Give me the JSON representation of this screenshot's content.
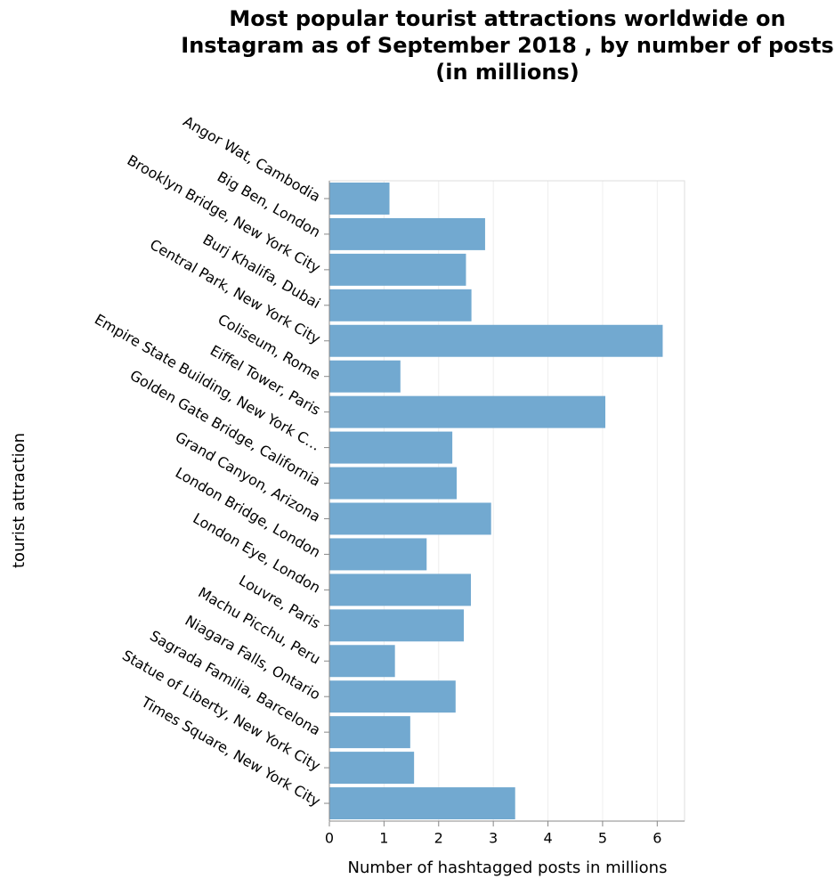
{
  "chart_data": {
    "type": "bar",
    "orientation": "horizontal",
    "title": "Most popular tourist attractions worldwide on Instagram as of September 2018 , by number of posts (in millions)",
    "x_label": "Number of hashtagged posts in millions",
    "y_label": "tourist attraction",
    "categories": [
      "Angor Wat, Cambodia",
      "Big Ben, London",
      "Brooklyn Bridge, New York City",
      "Burj Khalifa, Dubai",
      "Central Park, New York City",
      "Coliseum, Rome",
      "Eiffel Tower, Paris",
      "Empire State Building, New York C…",
      "Golden Gate Bridge, California",
      "Grand Canyon, Arizona",
      "London Bridge, London",
      "London Eye, London",
      "Louvre, Paris",
      "Machu Picchu, Peru",
      "Niagara Falls, Ontario",
      "Sagrada Familia, Barcelona",
      "Statue of Liberty, New York City",
      "Times Square, New York City"
    ],
    "values": [
      1.1,
      2.85,
      2.5,
      2.6,
      6.1,
      1.3,
      5.05,
      2.25,
      2.33,
      2.96,
      1.78,
      2.59,
      2.46,
      1.2,
      2.31,
      1.48,
      1.55,
      3.4
    ],
    "color": "#72a9d0",
    "xlim": [
      0,
      6.5
    ],
    "xticks": [
      0,
      1,
      2,
      3,
      4,
      5,
      6
    ],
    "grid": true
  }
}
